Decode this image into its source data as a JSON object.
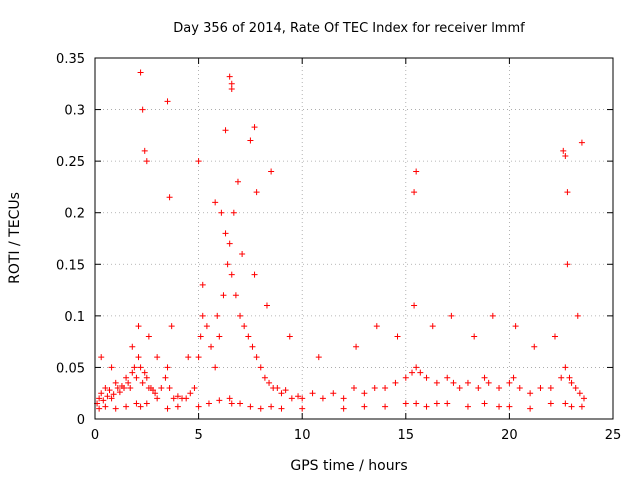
{
  "chart_data": {
    "type": "scatter",
    "title": "Day 356 of 2014, Rate Of TEC Index for receiver lmmf",
    "xlabel": "GPS time / hours",
    "ylabel": "ROTI / TECUs",
    "xlim": [
      0,
      25
    ],
    "ylim": [
      0,
      0.35
    ],
    "xticks": [
      0,
      5,
      10,
      15,
      20,
      25
    ],
    "xtick_labels": [
      "0",
      "5",
      "10",
      "15",
      "20",
      "25"
    ],
    "yticks": [
      0,
      0.05,
      0.1,
      0.15,
      0.2,
      0.25,
      0.3,
      0.35
    ],
    "ytick_labels": [
      "0",
      "0.05",
      "0.1",
      "0.15",
      "0.2",
      "0.25",
      "0.3",
      "0.35"
    ],
    "grid": true,
    "marker": "+",
    "series": [
      {
        "name": "ROTI",
        "color": "#ff0000",
        "x": [
          0.1,
          0.2,
          0.3,
          0.4,
          0.5,
          0.6,
          0.7,
          0.8,
          0.9,
          1.0,
          1.1,
          1.2,
          1.3,
          1.4,
          1.5,
          1.6,
          1.7,
          1.8,
          1.9,
          2.0,
          2.1,
          2.2,
          2.3,
          2.4,
          2.5,
          2.6,
          2.7,
          2.8,
          2.9,
          3.0,
          3.2,
          3.4,
          3.5,
          3.6,
          3.8,
          4.0,
          4.2,
          4.4,
          4.6,
          4.8,
          5.0,
          5.1,
          5.2,
          5.4,
          5.6,
          5.8,
          6.0,
          6.2,
          6.4,
          6.5,
          6.6,
          6.8,
          7.0,
          7.2,
          7.4,
          7.6,
          7.8,
          8.0,
          8.2,
          8.4,
          8.6,
          8.8,
          9.0,
          9.2,
          9.5,
          9.8,
          10.0,
          10.5,
          11.0,
          11.5,
          12.0,
          12.5,
          13.0,
          13.5,
          14.0,
          14.5,
          15.0,
          15.3,
          15.5,
          15.7,
          16.0,
          16.5,
          17.0,
          17.3,
          17.6,
          18.0,
          18.5,
          18.8,
          19.0,
          19.5,
          20.0,
          20.2,
          20.5,
          21.0,
          21.5,
          22.0,
          22.5,
          22.7,
          22.9,
          23.0,
          23.2,
          23.4,
          23.6,
          0.2,
          0.5,
          1.0,
          1.5,
          2.0,
          2.2,
          2.5,
          3.5,
          4.0,
          5.0,
          5.5,
          6.0,
          6.5,
          6.6,
          7.0,
          7.5,
          8.0,
          8.5,
          9.0,
          10.0,
          12.0,
          13.0,
          14.0,
          15.0,
          15.5,
          16.0,
          16.5,
          17.0,
          18.0,
          18.8,
          19.5,
          20.0,
          21.0,
          22.0,
          22.7,
          23.0,
          23.5,
          0.3,
          0.8,
          1.8,
          2.1,
          2.6,
          3.0,
          3.7,
          4.5,
          5.2,
          5.9,
          6.3,
          6.7,
          7.1,
          7.7,
          8.3,
          9.4,
          10.8,
          12.6,
          13.6,
          14.6,
          15.4,
          16.3,
          17.2,
          18.3,
          19.2,
          20.3,
          21.2,
          22.2,
          22.8,
          23.3,
          2.2,
          2.3,
          3.5,
          6.5,
          6.6,
          6.6,
          6.3,
          7.7,
          7.5,
          5.0,
          2.5,
          2.4,
          15.5,
          15.4,
          22.6,
          22.7,
          23.5,
          22.8,
          5.8,
          6.1,
          6.9,
          8.5,
          7.8,
          3.6
        ],
        "y": [
          0.015,
          0.02,
          0.025,
          0.018,
          0.03,
          0.022,
          0.028,
          0.02,
          0.024,
          0.035,
          0.03,
          0.026,
          0.032,
          0.03,
          0.04,
          0.035,
          0.03,
          0.045,
          0.05,
          0.04,
          0.06,
          0.05,
          0.035,
          0.045,
          0.04,
          0.03,
          0.03,
          0.028,
          0.025,
          0.02,
          0.03,
          0.04,
          0.05,
          0.03,
          0.02,
          0.022,
          0.02,
          0.02,
          0.025,
          0.03,
          0.06,
          0.08,
          0.1,
          0.09,
          0.07,
          0.05,
          0.08,
          0.12,
          0.15,
          0.17,
          0.14,
          0.12,
          0.1,
          0.09,
          0.08,
          0.07,
          0.06,
          0.05,
          0.04,
          0.035,
          0.03,
          0.03,
          0.025,
          0.028,
          0.02,
          0.022,
          0.02,
          0.025,
          0.02,
          0.025,
          0.02,
          0.03,
          0.025,
          0.03,
          0.03,
          0.035,
          0.04,
          0.045,
          0.05,
          0.045,
          0.04,
          0.035,
          0.04,
          0.035,
          0.03,
          0.035,
          0.03,
          0.04,
          0.035,
          0.03,
          0.035,
          0.04,
          0.03,
          0.025,
          0.03,
          0.03,
          0.04,
          0.05,
          0.04,
          0.035,
          0.03,
          0.025,
          0.02,
          0.01,
          0.012,
          0.01,
          0.012,
          0.015,
          0.012,
          0.015,
          0.01,
          0.012,
          0.012,
          0.015,
          0.018,
          0.02,
          0.015,
          0.015,
          0.012,
          0.01,
          0.012,
          0.01,
          0.01,
          0.01,
          0.012,
          0.012,
          0.015,
          0.015,
          0.012,
          0.015,
          0.015,
          0.012,
          0.015,
          0.012,
          0.012,
          0.01,
          0.015,
          0.015,
          0.012,
          0.012,
          0.06,
          0.05,
          0.07,
          0.09,
          0.08,
          0.06,
          0.09,
          0.06,
          0.13,
          0.1,
          0.18,
          0.2,
          0.16,
          0.14,
          0.11,
          0.08,
          0.06,
          0.07,
          0.09,
          0.08,
          0.11,
          0.09,
          0.1,
          0.08,
          0.1,
          0.09,
          0.07,
          0.08,
          0.15,
          0.1,
          0.336,
          0.3,
          0.308,
          0.332,
          0.325,
          0.32,
          0.28,
          0.283,
          0.27,
          0.25,
          0.25,
          0.26,
          0.24,
          0.22,
          0.26,
          0.255,
          0.268,
          0.22,
          0.21,
          0.2,
          0.23,
          0.24,
          0.22,
          0.215
        ]
      }
    ]
  }
}
